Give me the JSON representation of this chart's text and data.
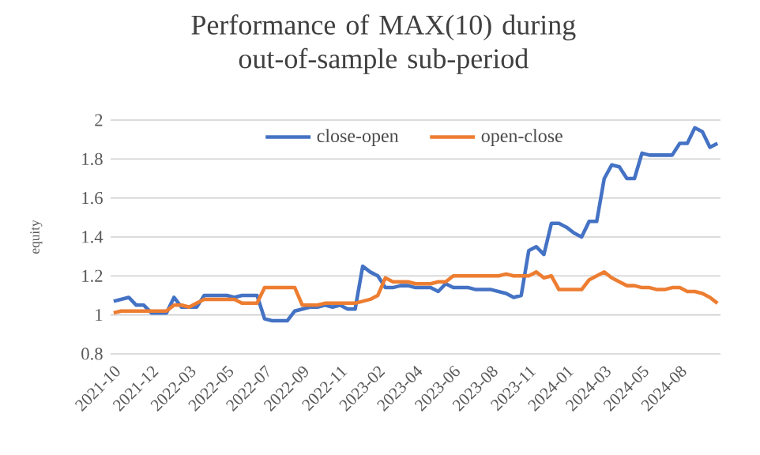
{
  "chart_data": {
    "type": "line",
    "title": "Performance of MAX(10) during out-of-sample sub-period",
    "ylabel": "equity",
    "categories": [
      "2021-10",
      null,
      null,
      null,
      null,
      "2021-12",
      null,
      null,
      null,
      null,
      "2022-03",
      null,
      null,
      null,
      null,
      "2022-05",
      null,
      null,
      null,
      null,
      "2022-07",
      null,
      null,
      null,
      null,
      "2022-09",
      null,
      null,
      null,
      null,
      "2022-11",
      null,
      null,
      null,
      null,
      "2023-02",
      null,
      null,
      null,
      null,
      "2023-04",
      null,
      null,
      null,
      null,
      "2023-06",
      null,
      null,
      null,
      null,
      "2023-08",
      null,
      null,
      null,
      null,
      "2023-11",
      null,
      null,
      null,
      null,
      "2024-01",
      null,
      null,
      null,
      null,
      "2024-03",
      null,
      null,
      null,
      null,
      "2024-05",
      null,
      null,
      null,
      null,
      "2024-08",
      null,
      null,
      null,
      null,
      null
    ],
    "series": [
      {
        "name": "close-open",
        "color": "#4472c4",
        "values": [
          1.07,
          1.08,
          1.09,
          1.05,
          1.05,
          1.01,
          1.01,
          1.01,
          1.09,
          1.04,
          1.04,
          1.04,
          1.1,
          1.1,
          1.1,
          1.1,
          1.09,
          1.1,
          1.1,
          1.1,
          0.98,
          0.97,
          0.97,
          0.97,
          1.02,
          1.03,
          1.04,
          1.04,
          1.05,
          1.04,
          1.05,
          1.03,
          1.03,
          1.25,
          1.22,
          1.2,
          1.14,
          1.14,
          1.15,
          1.15,
          1.14,
          1.14,
          1.14,
          1.12,
          1.16,
          1.14,
          1.14,
          1.14,
          1.13,
          1.13,
          1.13,
          1.12,
          1.11,
          1.09,
          1.1,
          1.33,
          1.35,
          1.31,
          1.47,
          1.47,
          1.45,
          1.42,
          1.4,
          1.48,
          1.48,
          1.7,
          1.77,
          1.76,
          1.7,
          1.7,
          1.83,
          1.82,
          1.82,
          1.82,
          1.82,
          1.88,
          1.88,
          1.96,
          1.94,
          1.86,
          1.88
        ]
      },
      {
        "name": "open-close",
        "color": "#ed7d31",
        "values": [
          1.01,
          1.02,
          1.02,
          1.02,
          1.02,
          1.02,
          1.02,
          1.02,
          1.05,
          1.05,
          1.04,
          1.06,
          1.08,
          1.08,
          1.08,
          1.08,
          1.08,
          1.06,
          1.06,
          1.06,
          1.14,
          1.14,
          1.14,
          1.14,
          1.14,
          1.05,
          1.05,
          1.05,
          1.06,
          1.06,
          1.06,
          1.06,
          1.06,
          1.07,
          1.08,
          1.1,
          1.19,
          1.17,
          1.17,
          1.17,
          1.16,
          1.16,
          1.16,
          1.17,
          1.17,
          1.2,
          1.2,
          1.2,
          1.2,
          1.2,
          1.2,
          1.2,
          1.21,
          1.2,
          1.2,
          1.2,
          1.22,
          1.19,
          1.2,
          1.13,
          1.13,
          1.13,
          1.13,
          1.18,
          1.2,
          1.22,
          1.19,
          1.17,
          1.15,
          1.15,
          1.14,
          1.14,
          1.13,
          1.13,
          1.14,
          1.14,
          1.12,
          1.12,
          1.11,
          1.09,
          1.06
        ]
      }
    ],
    "ylim": [
      0.8,
      2
    ],
    "yticks": [
      0.8,
      1,
      1.2,
      1.4,
      1.6,
      1.8,
      2
    ],
    "grid": "y",
    "legend": "top"
  }
}
